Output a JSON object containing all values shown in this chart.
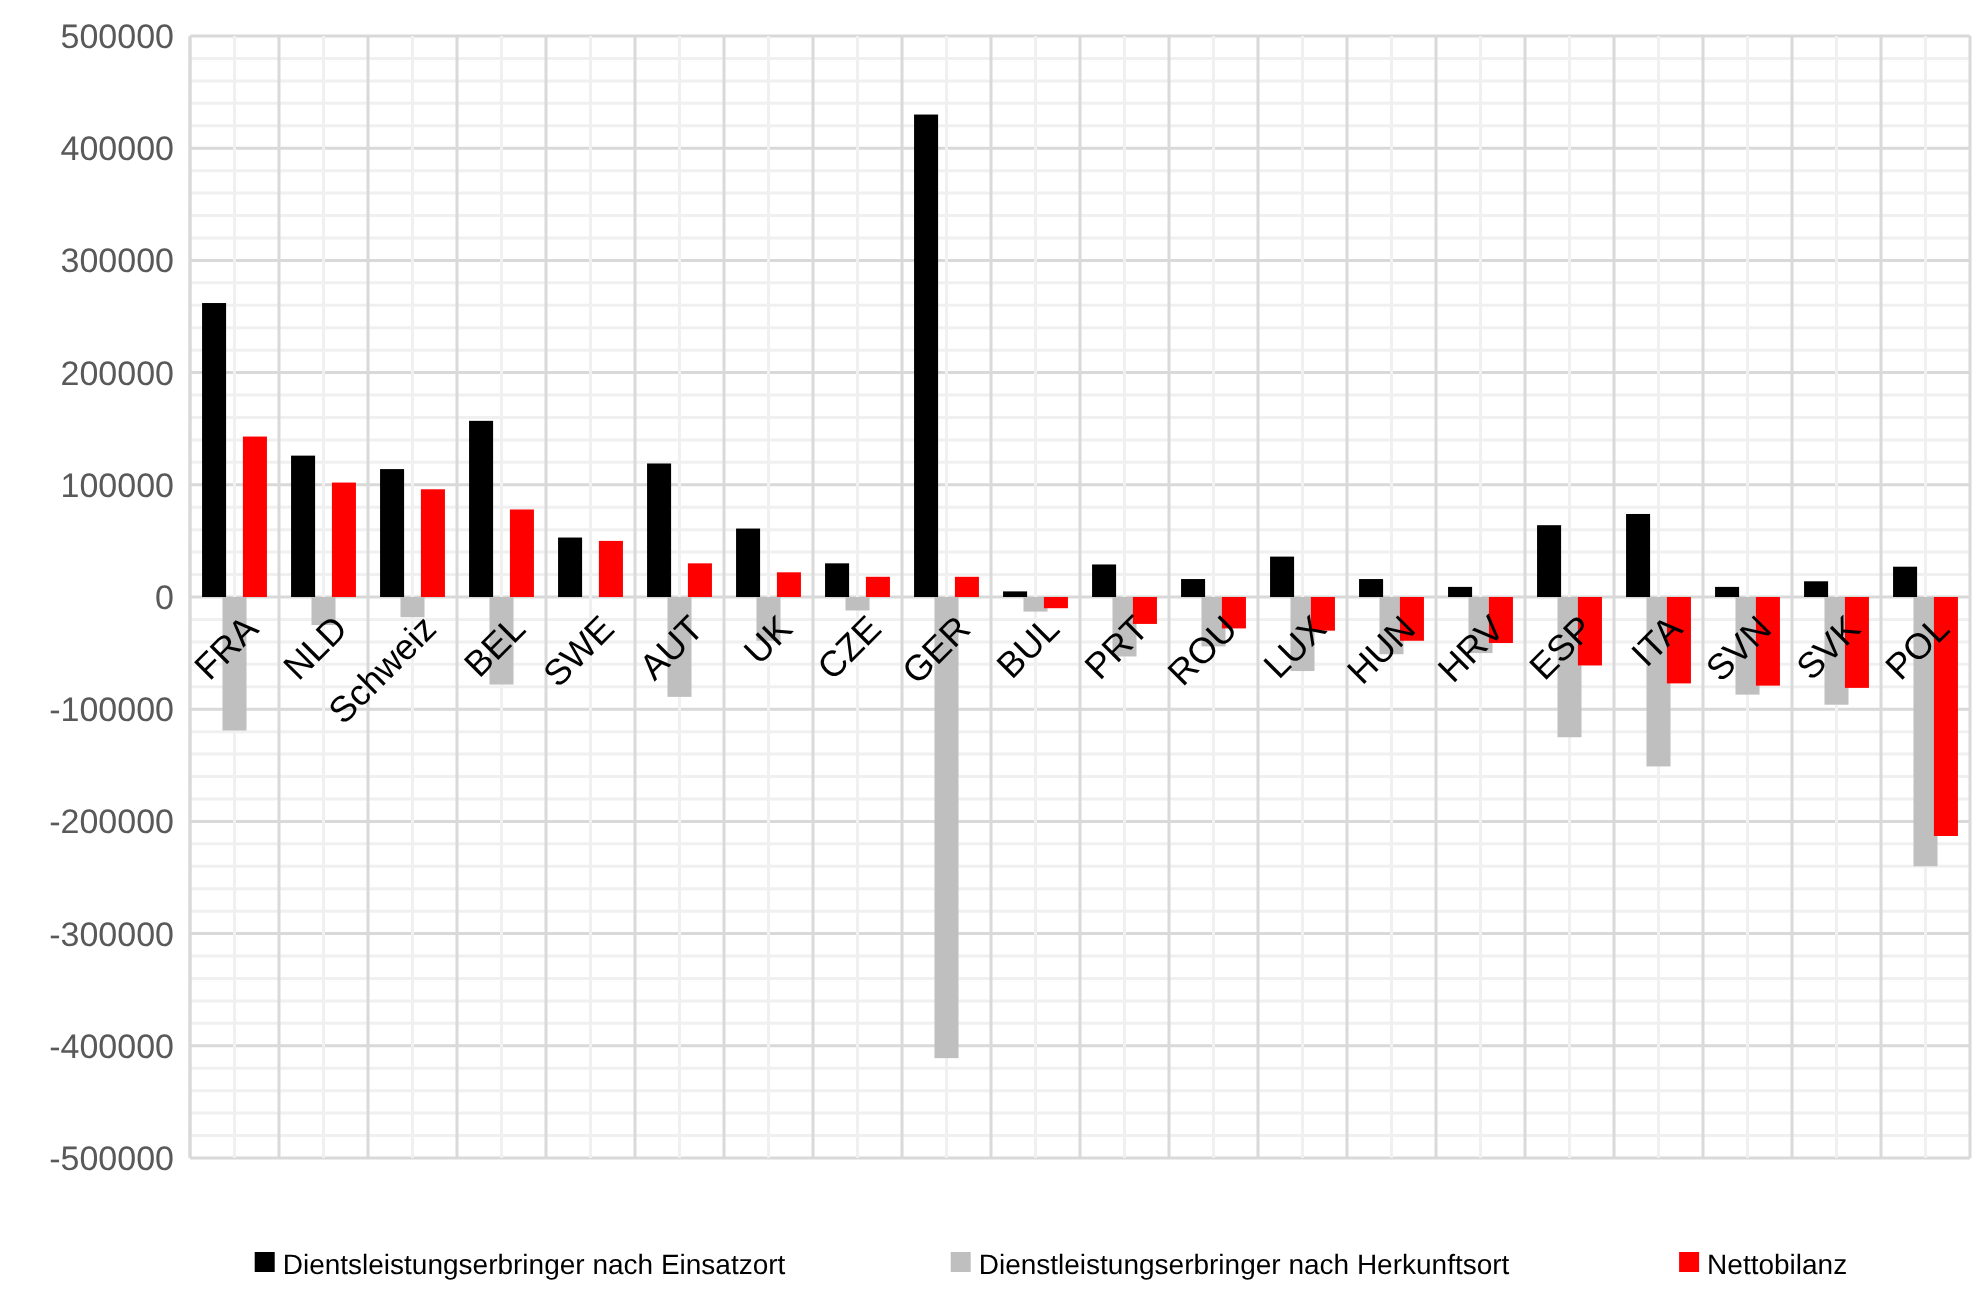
{
  "chart_data": {
    "type": "bar",
    "categories": [
      "FRA",
      "NLD",
      "Schweiz",
      "BEL",
      "SWE",
      "AUT",
      "UK",
      "CZE",
      "GER",
      "BUL",
      "PRT",
      "ROU",
      "LUX",
      "HUN",
      "HRV",
      "ESP",
      "ITA",
      "SVN",
      "SVK",
      "POL"
    ],
    "series": [
      {
        "name": "Dientsleistungserbringer nach Einsatzort",
        "color": "#000000",
        "values": [
          262000,
          126000,
          114000,
          157000,
          53000,
          119000,
          61000,
          30000,
          430000,
          5000,
          29000,
          16000,
          36000,
          16000,
          9000,
          64000,
          74000,
          9000,
          14000,
          27000
        ]
      },
      {
        "name": "Dienstleistungserbringer nach Herkunftsort",
        "color": "#bfbfbf",
        "values": [
          -119000,
          -25000,
          -18000,
          -78000,
          null,
          -89000,
          -39000,
          -12000,
          -411000,
          -13000,
          -53000,
          -44000,
          -66000,
          -51000,
          -50000,
          -125000,
          -151000,
          -87000,
          -96000,
          -240000
        ]
      },
      {
        "name": "Nettobilanz",
        "color": "#ff0000",
        "values": [
          143000,
          102000,
          96000,
          78000,
          50000,
          30000,
          22000,
          18000,
          18000,
          -10000,
          -24000,
          -28000,
          -30000,
          -39000,
          -41000,
          -61000,
          -77000,
          -79000,
          -81000,
          -213000
        ]
      }
    ],
    "ylim": [
      -500000,
      500000
    ],
    "yticks": [
      -500000,
      -400000,
      -300000,
      -200000,
      -100000,
      0,
      100000,
      200000,
      300000,
      400000,
      500000
    ],
    "grid": true,
    "legend": "bottom"
  }
}
